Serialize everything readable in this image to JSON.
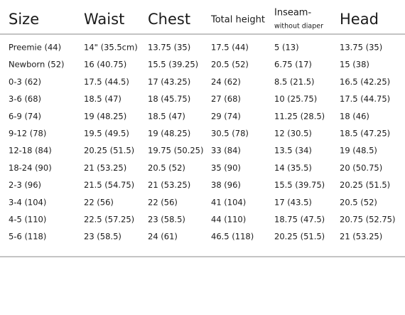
{
  "table": {
    "header": [
      "Size",
      "Waist",
      "Chest",
      "Total height",
      "Inseam-",
      "Head"
    ],
    "header_note": "without diaper",
    "rows": [
      [
        "Preemie (44)",
        "14\" (35.5cm)",
        "13.75 (35)",
        "17.5 (44)",
        "5 (13)",
        "13.75 (35)"
      ],
      [
        "Newborn (52)",
        "16 (40.75)",
        "15.5 (39.25)",
        "20.5 (52)",
        "6.75 (17)",
        "15 (38)"
      ],
      [
        "0-3 (62)",
        "17.5 (44.5)",
        "17 (43.25)",
        "24 (62)",
        "8.5 (21.5)",
        "16.5 (42.25)"
      ],
      [
        "3-6 (68)",
        "18.5 (47)",
        "18 (45.75)",
        "27 (68)",
        "10 (25.75)",
        "17.5 (44.75)"
      ],
      [
        "6-9 (74)",
        "19 (48.25)",
        "18.5 (47)",
        "29 (74)",
        "11.25 (28.5)",
        "18 (46)"
      ],
      [
        "9-12 (78)",
        "19.5 (49.5)",
        "19 (48.25)",
        "30.5 (78)",
        "12 (30.5)",
        "18.5 (47.25)"
      ],
      [
        "12-18 (84)",
        "20.25 (51.5)",
        "19.75 (50.25)",
        "33 (84)",
        "13.5 (34)",
        "19 (48.5)"
      ],
      [
        "18-24 (90)",
        "21 (53.25)",
        "20.5 (52)",
        "35 (90)",
        "14 (35.5)",
        "20 (50.75)"
      ],
      [
        "2-3 (96)",
        "21.5 (54.75)",
        "21 (53.25)",
        "38 (96)",
        "15.5 (39.75)",
        "20.25 (51.5)"
      ],
      [
        "3-4 (104)",
        "22 (56)",
        "22 (56)",
        "41 (104)",
        "17 (43.5)",
        "20.5 (52)"
      ],
      [
        "4-5 (110)",
        "22.5 (57.25)",
        "23 (58.5)",
        "44 (110)",
        "18.75 (47.5)",
        "20.75 (52.75)"
      ],
      [
        "5-6 (118)",
        "23 (58.5)",
        "24 (61)",
        "46.5 (118)",
        "20.25 (51.5)",
        "21 (53.25)"
      ]
    ]
  }
}
